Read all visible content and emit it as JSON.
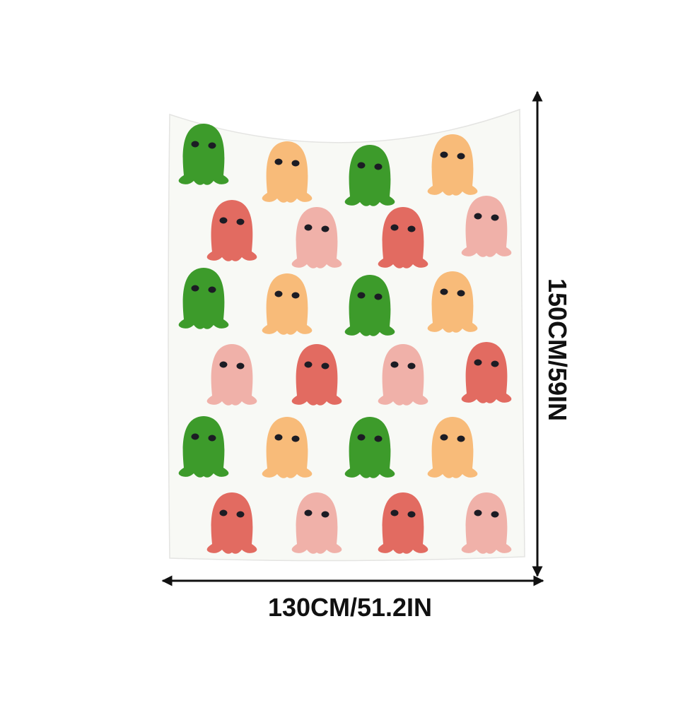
{
  "width_label": "130CM/51.2IN",
  "height_label": "150CM/59IN"
}
